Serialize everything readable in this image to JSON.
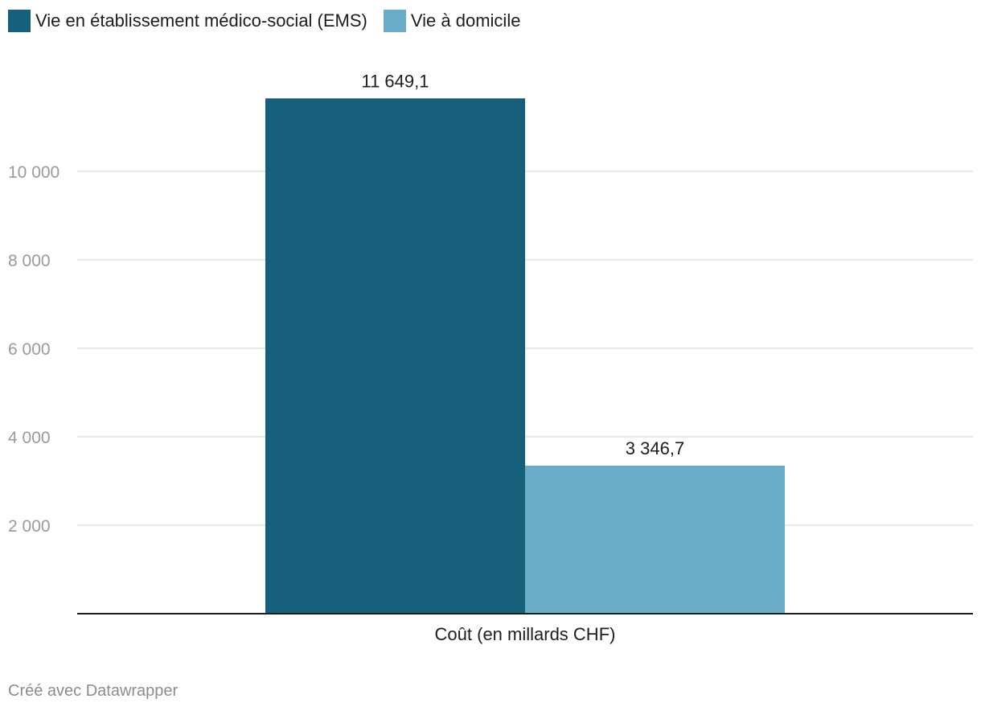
{
  "legend": [
    {
      "label": "Vie en établissement médico-social (EMS)",
      "color": "#17607b"
    },
    {
      "label": "Vie à domicile",
      "color": "#6badc9"
    }
  ],
  "footer": "Créé avec Datawrapper",
  "chart_data": {
    "type": "bar",
    "categories": [
      "Coût (en millards CHF)"
    ],
    "series": [
      {
        "name": "Vie en établissement médico-social (EMS)",
        "values": [
          11649.1
        ],
        "label": "11 649,1",
        "color": "#17607b"
      },
      {
        "name": "Vie à domicile",
        "values": [
          3346.7
        ],
        "label": "3 346,7",
        "color": "#6badc9"
      }
    ],
    "yticks": [
      {
        "value": 2000,
        "label": "2 000"
      },
      {
        "value": 4000,
        "label": "4 000"
      },
      {
        "value": 6000,
        "label": "6 000"
      },
      {
        "value": 8000,
        "label": "8 000"
      },
      {
        "value": 10000,
        "label": "10 000"
      }
    ],
    "ylim": [
      0,
      12000
    ],
    "grid": true,
    "legend_position": "top-left"
  }
}
